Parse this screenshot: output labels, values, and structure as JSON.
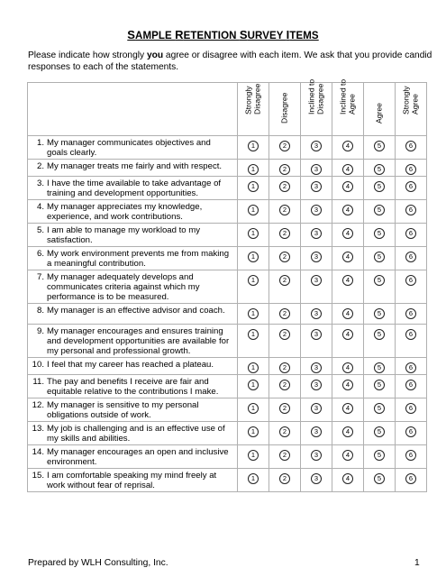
{
  "title": {
    "first_big": "S",
    "first_rest": "AMPLE ",
    "second_big": "R",
    "second_rest": "ETENTION ",
    "third_big": "S",
    "third_rest": "URVEY ",
    "fourth_big": "I",
    "fourth_rest": "TEMS"
  },
  "intro": {
    "line1_before": "Please indicate how strongly ",
    "line1_bold": "you",
    "line1_after": " agree or disagree with each item.  We ask that you provide candid",
    "line2": "responses to each of the statements."
  },
  "columns": [
    {
      "line1": "Strongly",
      "line2": "Disagree"
    },
    {
      "line1": "Disagree",
      "line2": ""
    },
    {
      "line1": "Inclined to",
      "line2": "Disagree"
    },
    {
      "line1": "Inclined to",
      "line2": "Agree"
    },
    {
      "line1": "Agree",
      "line2": ""
    },
    {
      "line1": "Strongly",
      "line2": "Agree"
    }
  ],
  "options": [
    "1",
    "2",
    "3",
    "4",
    "5",
    "6"
  ],
  "items": [
    {
      "num": "1.",
      "text": "My manager communicates objectives and goals clearly."
    },
    {
      "num": "2.",
      "text": "My manager treats me fairly and with respect."
    },
    {
      "num": "3.",
      "text": "I have the time available to take advantage of training and development opportunities."
    },
    {
      "num": "4.",
      "text": "My manager appreciates my knowledge, experience, and work contributions."
    },
    {
      "num": "5.",
      "text": "I am able to manage my workload to my satisfaction."
    },
    {
      "num": "6.",
      "text": "My work environment prevents me from making a meaningful contribution."
    },
    {
      "num": "7.",
      "text": "My manager adequately develops and communicates criteria against which my performance is to be measured."
    },
    {
      "num": "8.",
      "text": "My manager is an effective advisor and coach."
    },
    {
      "num": "9.",
      "text": "My manager encourages and ensures training and development opportunities are available for my personal and professional growth."
    },
    {
      "num": "10.",
      "text": "I feel that my career has reached a plateau."
    },
    {
      "num": "11.",
      "text": "The pay and benefits I receive are fair and equitable relative to the contributions I make."
    },
    {
      "num": "12.",
      "text": "My manager is sensitive to my personal obligations outside of work."
    },
    {
      "num": "13.",
      "text": "My job is challenging and is an effective use of my skills and abilities."
    },
    {
      "num": "14.",
      "text": "My manager encourages an open and inclusive environment."
    },
    {
      "num": "15.",
      "text": "I am comfortable speaking my mind freely at work without fear of reprisal."
    }
  ],
  "footer": {
    "left": "Prepared by WLH Consulting, Inc.",
    "page": "1"
  }
}
